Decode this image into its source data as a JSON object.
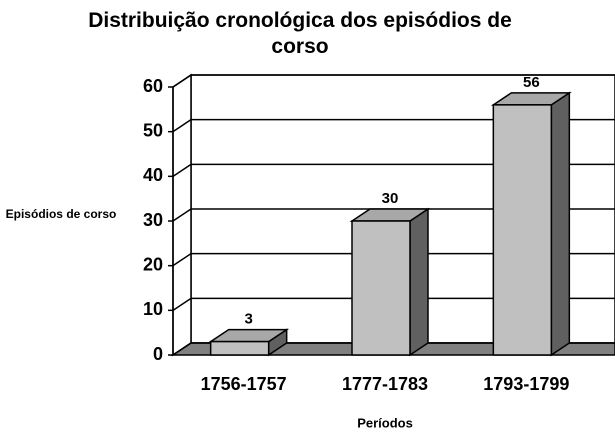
{
  "chart_data": {
    "type": "bar3d",
    "title": "Distribuição cronológica dos episódios de corso",
    "x_label": "Períodos",
    "y_label": "Episódios de corso",
    "categories": [
      "1756-1757",
      "1777-1783",
      "1793-1799"
    ],
    "values": [
      3,
      30,
      56
    ],
    "color": "#c0c0c0",
    "ylim": [
      0,
      60
    ],
    "yticks": [
      0,
      10,
      20,
      30,
      40,
      50,
      60
    ],
    "grid": true
  }
}
